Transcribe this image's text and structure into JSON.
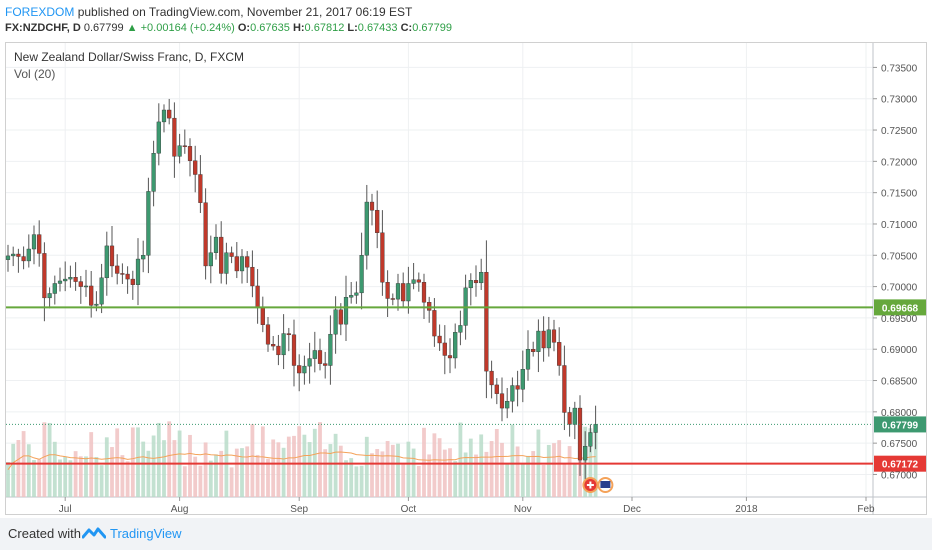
{
  "header": {
    "author": "FOREXDOM",
    "published_text": "published on TradingView.com, November 21, 2017 06:19 EST",
    "symbol": "FX:NZDCHF, D",
    "last": "0.67799",
    "change": "+0.00164 (+0.24%)",
    "o_label": "O:",
    "o": "0.67635",
    "h_label": "H:",
    "h": "0.67812",
    "l_label": "L:",
    "l": "0.67433",
    "c_label": "C:",
    "c": "0.67799"
  },
  "legend": {
    "title": "New Zealand Dollar/Swiss Franc, D, FXCM",
    "volume": "Vol (20)"
  },
  "footer": {
    "created_with": "Created with",
    "brand": "TradingView"
  },
  "colors": {
    "up": "#3d9970",
    "down": "#c0392b",
    "support": "#e53935",
    "resistance": "#66a83c",
    "accent": "#2196f3"
  },
  "chart_data": {
    "type": "candlestick",
    "title": "New Zealand Dollar/Swiss Franc, D, FXCM",
    "ylim": [
      0.6664,
      0.7389
    ],
    "y_ticks": [
      0.67,
      0.675,
      0.68,
      0.685,
      0.69,
      0.695,
      0.7,
      0.705,
      0.71,
      0.715,
      0.72,
      0.725,
      0.73,
      0.735
    ],
    "y_tick_labels": [
      "0.67000",
      "0.67500",
      "0.68000",
      "0.68500",
      "0.69000",
      "0.69500",
      "0.70000",
      "0.70500",
      "0.71000",
      "0.71500",
      "0.72000",
      "0.72500",
      "0.73000",
      "0.73500"
    ],
    "x_ticks": [
      {
        "label": "Jul",
        "index": 11
      },
      {
        "label": "Aug",
        "index": 33
      },
      {
        "label": "Sep",
        "index": 56
      },
      {
        "label": "Oct",
        "index": 77
      },
      {
        "label": "Nov",
        "index": 99
      },
      {
        "label": "Dec",
        "index": 120
      },
      {
        "label": "2018",
        "index": 142
      },
      {
        "label": "Feb",
        "index": 165
      }
    ],
    "horizontal_lines": [
      {
        "value": 0.69668,
        "label": "0.69668",
        "color": "#66a83c"
      },
      {
        "value": 0.67172,
        "label": "0.67172",
        "color": "#e53935"
      }
    ],
    "last_price": {
      "value": 0.67799,
      "label": "0.67799"
    },
    "closes": [
      0.7049,
      0.7052,
      0.7048,
      0.7041,
      0.706,
      0.7083,
      0.7053,
      0.6982,
      0.6989,
      0.7005,
      0.7009,
      0.7012,
      0.7015,
      0.7008,
      0.7,
      0.7001,
      0.697,
      0.6972,
      0.7014,
      0.7065,
      0.7033,
      0.7021,
      0.702,
      0.7012,
      0.7003,
      0.7044,
      0.705,
      0.7152,
      0.7213,
      0.7263,
      0.7282,
      0.7269,
      0.7208,
      0.7225,
      0.7224,
      0.7201,
      0.7179,
      0.7134,
      0.7033,
      0.7054,
      0.7079,
      0.7021,
      0.7054,
      0.7048,
      0.7025,
      0.7048,
      0.7031,
      0.7001,
      0.6966,
      0.6939,
      0.6908,
      0.6905,
      0.6891,
      0.6925,
      0.6923,
      0.6874,
      0.6862,
      0.6873,
      0.6885,
      0.6898,
      0.6877,
      0.6874,
      0.6924,
      0.6963,
      0.694,
      0.6983,
      0.6986,
      0.699,
      0.705,
      0.7135,
      0.7122,
      0.7086,
      0.7007,
      0.6981,
      0.698,
      0.7005,
      0.6977,
      0.7005,
      0.7011,
      0.7007,
      0.6975,
      0.6962,
      0.6921,
      0.691,
      0.689,
      0.6886,
      0.6927,
      0.6938,
      0.6998,
      0.701,
      0.7006,
      0.7023,
      0.6865,
      0.6843,
      0.6829,
      0.6806,
      0.6817,
      0.6842,
      0.6836,
      0.6868,
      0.69,
      0.6896,
      0.6929,
      0.6902,
      0.6931,
      0.6911,
      0.6874,
      0.6799,
      0.678,
      0.6806,
      0.6723,
      0.6745,
      0.6767,
      0.678
    ]
  }
}
